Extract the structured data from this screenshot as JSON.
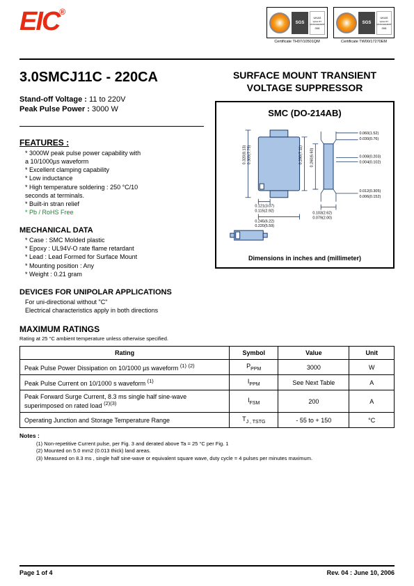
{
  "header": {
    "logo_text": "EIC",
    "logo_reg": "®",
    "cert1_label": "Certificate TH07/10501QM",
    "cert2_label": "Certificate TW00/17270EM",
    "sgs": "SGS",
    "ukas": "UKAS",
    "ukas_sub": "QUALITY MANAGEMENT",
    "ukas_num": "006"
  },
  "part": {
    "title": "3.0SMCJ11C - 220CA",
    "standoff_lbl": "Stand-off Voltage :",
    "standoff_val": "11 to 220V",
    "power_lbl": "Peak Pulse Power :",
    "power_val": "3000 W"
  },
  "right": {
    "title_l1": "SURFACE MOUNT TRANSIENT",
    "title_l2": "VOLTAGE SUPPRESSOR",
    "pkg_name": "SMC (DO-214AB)",
    "dim_note": "Dimensions in inches and  (millimeter)"
  },
  "features": {
    "head": "FEATURES :",
    "items": [
      "* 3000W peak pulse power capability with",
      "  a 10/1000µs  waveform",
      "* Excellent clamping capability",
      "* Low inductance",
      "* High temperature soldering : 250 °C/10",
      "   seconds at terminals.",
      "* Built-in stran relief",
      "* Pb / RoHS Free"
    ],
    "green_index": 7
  },
  "mech": {
    "head": "MECHANICAL DATA",
    "items": [
      "*  Case :  SMC Molded plastic",
      "*  Epoxy : UL94V-O rate flame retardant",
      "*  Lead : Lead Formed for Surface Mount",
      "*  Mounting  position : Any",
      "*  Weight : 0.21 gram"
    ]
  },
  "unipolar": {
    "head": "DEVICES FOR UNIPOLAR APPLICATIONS",
    "items": [
      "   For uni-directional without \"C\"",
      "   Electrical characteristics apply in both directions"
    ]
  },
  "maxratings": {
    "head": "MAXIMUM RATINGS",
    "note": " Rating at 25 °C ambient temperature unless otherwise specified.",
    "columns": [
      "Rating",
      "Symbol",
      "Value",
      "Unit"
    ],
    "rows": [
      [
        "Peak Pulse Power Dissipation on 10/1000 µs waveform (1) (2)",
        "P",
        "PPM",
        "3000",
        "W"
      ],
      [
        "Peak Pulse Current on 10/1000 s waveform (1)",
        "I",
        "PPM",
        "See Next Table",
        "A"
      ],
      [
        "Peak Forward Surge Current, 8.3 ms single half sine-wave\nsuperimposed on rated load (2)(3)",
        "I",
        "FSM",
        "200",
        "A"
      ],
      [
        "Operating Junction and Storage Temperature Range",
        "T",
        "J , TSTG",
        "- 55 to + 150",
        "°C"
      ]
    ]
  },
  "dims": {
    "d1": "0.060(1.52)",
    "d1b": "0.030(0.76)",
    "d2": "0.008(0.203)",
    "d2b": "0.004(0.102)",
    "d3": "0.012(0.305)",
    "d3b": "0.006(0.152)",
    "v1": "0.320(8.13)",
    "v1b": "0.305(7.75)",
    "v2": "0.280(7.11)",
    "v3": "0.260(6.60)",
    "h1": "0.121(3.07)",
    "h1b": "0.115(2.92)",
    "h2": "0.245(6.22)",
    "h2b": "0.220(5.59)",
    "h3": "0.103(2.62)",
    "h3b": "0.079(2.00)"
  },
  "notes": {
    "head": "Notes :",
    "items": [
      "(1) Non-repetitive Current pulse, per Fig. 3 and derated above Ta = 25 °C per Fig. 1",
      "(2) Mounted on 5.0 mm2 (0.013 thick) land areas.",
      "(3) Measured on 8.3 ms , single half sine-wave or equivalent square wave, duty cycle = 4 pulses per minutes maximum."
    ]
  },
  "footer": {
    "left": "Page 1 of 4",
    "right": "Rev. 04 : June 10, 2006"
  }
}
